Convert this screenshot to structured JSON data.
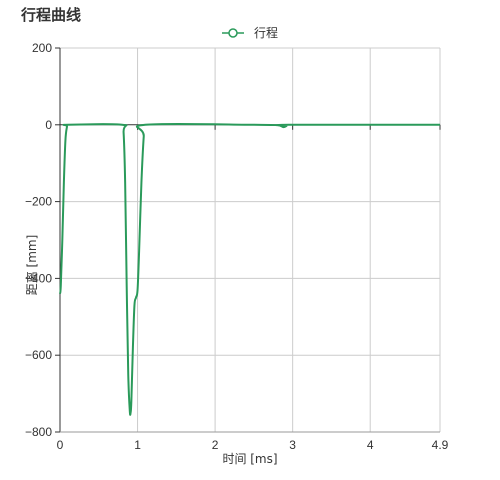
{
  "header": {
    "title": "行程曲线"
  },
  "chart_data": {
    "type": "line",
    "title": "行程曲线",
    "xlabel": "时间 [ms]",
    "ylabel": "距离 [mm]",
    "xlim": [
      0,
      4.9
    ],
    "ylim": [
      -800,
      200
    ],
    "x_ticks": [
      0,
      1,
      2,
      3,
      4,
      4.9
    ],
    "x_tick_labels": [
      "0",
      "1",
      "2",
      "3",
      "4",
      "4.9"
    ],
    "y_ticks": [
      200,
      0,
      -200,
      -400,
      -600,
      -800
    ],
    "y_tick_labels": [
      "200",
      "0",
      "−200",
      "−400",
      "−600",
      "−800"
    ],
    "grid": true,
    "legend_position": "top-center",
    "series": [
      {
        "name": "行程",
        "color": "#2a9a5a",
        "marker": "circle-open",
        "points": [
          [
            0,
            -440
          ],
          [
            0.01,
            -420
          ],
          [
            0.03,
            -300
          ],
          [
            0.05,
            -150
          ],
          [
            0.07,
            -40
          ],
          [
            0.09,
            -5
          ],
          [
            0.1,
            0
          ],
          [
            0.8,
            0
          ],
          [
            0.82,
            -20
          ],
          [
            0.84,
            -150
          ],
          [
            0.86,
            -420
          ],
          [
            0.88,
            -650
          ],
          [
            0.9,
            -745
          ],
          [
            0.91,
            -750
          ],
          [
            0.92,
            -720
          ],
          [
            0.94,
            -580
          ],
          [
            0.96,
            -470
          ],
          [
            0.98,
            -450
          ],
          [
            1.0,
            -430
          ],
          [
            1.02,
            -330
          ],
          [
            1.05,
            -150
          ],
          [
            1.08,
            -30
          ],
          [
            1.1,
            0
          ],
          [
            2.5,
            0
          ],
          [
            2.8,
            -1
          ],
          [
            2.88,
            -6
          ],
          [
            2.92,
            -3
          ],
          [
            2.95,
            0
          ],
          [
            4.9,
            0
          ]
        ]
      }
    ]
  }
}
